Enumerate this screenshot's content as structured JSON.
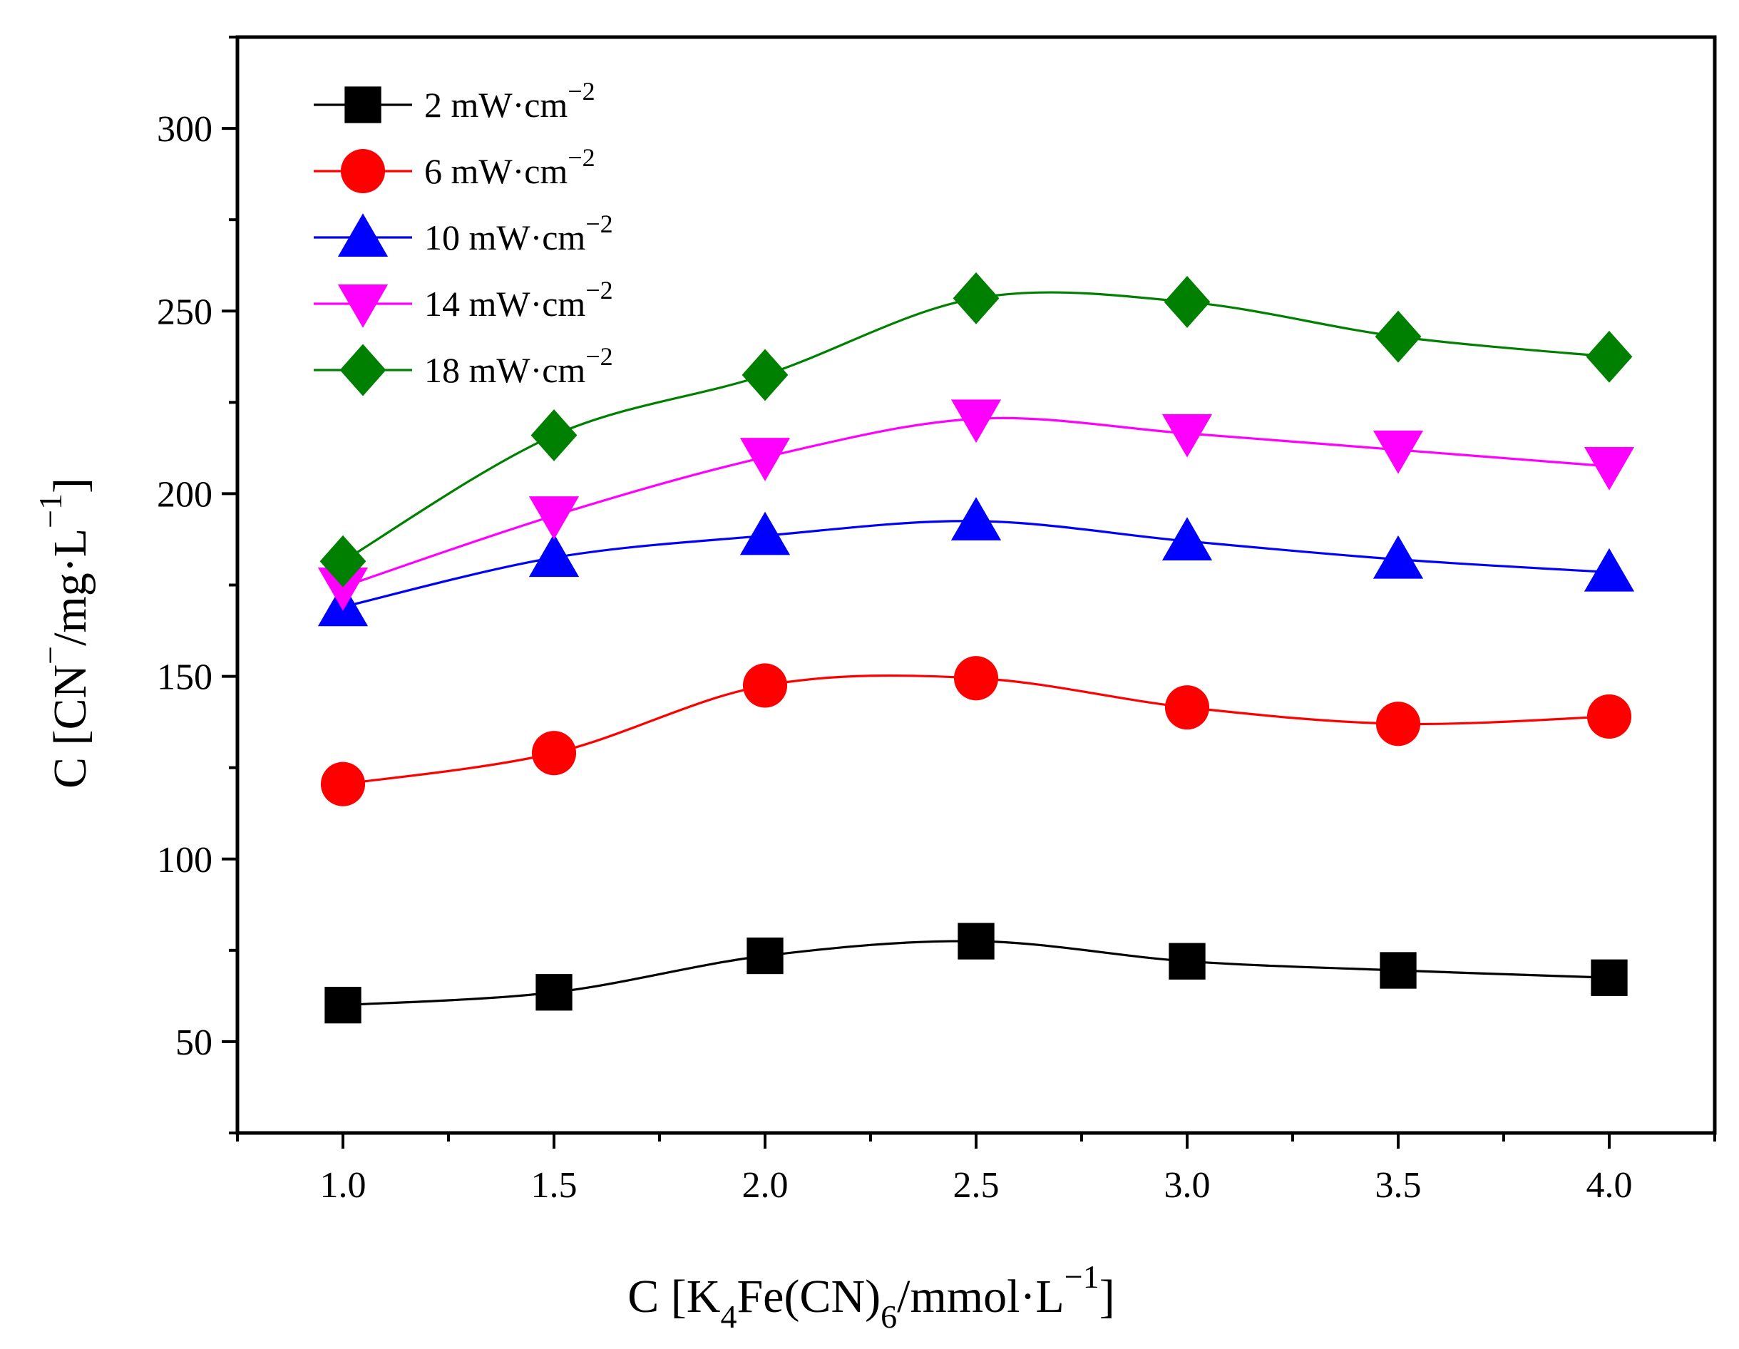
{
  "chart_data": {
    "type": "line",
    "xlabel": {
      "prefix": "C [K",
      "sub1": "4",
      "mid": "Fe(CN)",
      "sub2": "6",
      "unit": "/mmol·L",
      "sup": "−1",
      "close": "]"
    },
    "ylabel": {
      "prefix": "C [CN",
      "sup1": "−",
      "unit": "/mg·L",
      "sup2": "−1",
      "close": "]"
    },
    "xlim": [
      0.75,
      4.25
    ],
    "ylim": [
      25,
      325
    ],
    "x_ticks": [
      "1.0",
      "1.5",
      "2.0",
      "2.5",
      "3.0",
      "3.5",
      "4.0"
    ],
    "y_ticks": [
      "50",
      "100",
      "150",
      "200",
      "250",
      "300"
    ],
    "x": [
      1.0,
      1.5,
      2.0,
      2.5,
      3.0,
      3.5,
      4.0
    ],
    "grid": false,
    "legend_position": "top-left",
    "series": [
      {
        "name": "2 mW·cm",
        "sup": "−2",
        "color": "#000000",
        "marker": "square",
        "values": [
          60,
          63.5,
          73.5,
          77.5,
          72,
          69.5,
          67.5
        ]
      },
      {
        "name": "6 mW·cm",
        "sup": "−2",
        "color": "#ff0000",
        "marker": "circle",
        "values": [
          120.5,
          129,
          147.5,
          149.5,
          141.5,
          137,
          139
        ]
      },
      {
        "name": "10 mW·cm",
        "sup": "−2",
        "color": "#0000ff",
        "marker": "triangle-up",
        "values": [
          169,
          182.5,
          188.5,
          192.5,
          187,
          182,
          178.5
        ]
      },
      {
        "name": "14 mW·cm",
        "sup": "−2",
        "color": "#ff00ff",
        "marker": "triangle-down",
        "values": [
          174.5,
          194,
          210,
          220.5,
          216.5,
          212,
          207.5
        ]
      },
      {
        "name": "18 mW·cm",
        "sup": "−2",
        "color": "#008000",
        "marker": "diamond",
        "values": [
          181.5,
          216,
          232.5,
          253.5,
          252.5,
          243,
          237.5
        ]
      }
    ]
  }
}
